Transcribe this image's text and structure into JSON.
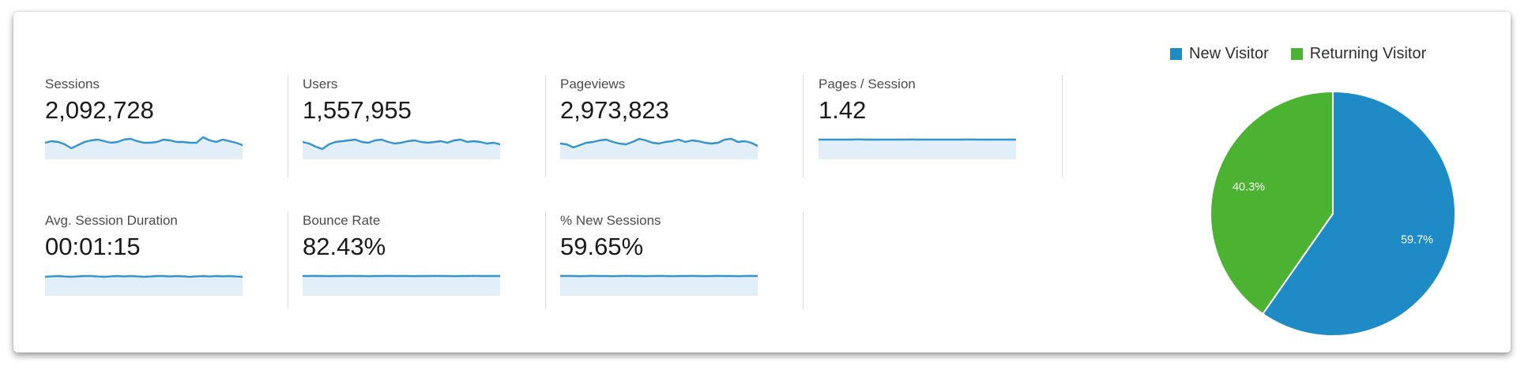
{
  "colors": {
    "spark_line": "#3494cd",
    "spark_fill": "#e2eef8",
    "divider": "#d9d9d9",
    "pie_blue": "#1e8bc6",
    "pie_green": "#4cb232"
  },
  "metrics": {
    "row1": [
      {
        "label": "Sessions",
        "value": "2,092,728",
        "spark": [
          13,
          11,
          12,
          15,
          20,
          16,
          12,
          10,
          9,
          11,
          13,
          12,
          9,
          8,
          11,
          13,
          13,
          12,
          9,
          10,
          12,
          12,
          13,
          13,
          6,
          10,
          12,
          9,
          11,
          13,
          16
        ]
      },
      {
        "label": "Users",
        "value": "1,557,955",
        "spark": [
          12,
          14,
          18,
          21,
          15,
          12,
          11,
          10,
          9,
          12,
          13,
          10,
          9,
          12,
          14,
          13,
          11,
          10,
          12,
          13,
          12,
          11,
          13,
          10,
          9,
          12,
          11,
          12,
          14,
          13,
          15
        ]
      },
      {
        "label": "Pageviews",
        "value": "2,973,823",
        "spark": [
          14,
          15,
          19,
          16,
          13,
          12,
          10,
          9,
          12,
          14,
          15,
          12,
          8,
          10,
          13,
          14,
          12,
          11,
          9,
          12,
          10,
          11,
          13,
          14,
          13,
          9,
          8,
          12,
          11,
          13,
          17
        ]
      },
      {
        "label": "Pages / Session",
        "value": "1.42",
        "spark": [
          9,
          9,
          9,
          9,
          9,
          9,
          8.7,
          9,
          9,
          9,
          9,
          9,
          9,
          9,
          8.8,
          9,
          9,
          9,
          9,
          9,
          9,
          9,
          9,
          8.8,
          9,
          9,
          9,
          9,
          9,
          9,
          9
        ]
      }
    ],
    "row2": [
      {
        "label": "Avg. Session Duration",
        "value": "00:01:15",
        "spark": [
          10,
          9.4,
          9,
          9.6,
          10,
          9.4,
          9,
          9,
          9.6,
          10,
          9.4,
          9,
          9.6,
          9,
          9.4,
          10,
          9.6,
          9,
          9,
          9.6,
          9,
          9.4,
          10,
          9.4,
          9,
          9.6,
          9,
          9.4,
          9,
          9.6,
          10
        ]
      },
      {
        "label": "Bounce Rate",
        "value": "82.43%",
        "spark": [
          9,
          9,
          8.8,
          9,
          9.2,
          9,
          9,
          8.8,
          9,
          9,
          9.2,
          9,
          9,
          8.8,
          9,
          9,
          9,
          9.2,
          9,
          9,
          8.8,
          9,
          9,
          9.2,
          9,
          9,
          8.8,
          9,
          9,
          9,
          9
        ]
      },
      {
        "label": "% New Sessions",
        "value": "59.65%",
        "spark": [
          9,
          8.8,
          9,
          9.2,
          9,
          8.8,
          9,
          9,
          9.2,
          9,
          8.8,
          9,
          9,
          9.2,
          9,
          8.8,
          9,
          9.2,
          9,
          9,
          8.8,
          9,
          9.2,
          9,
          8.8,
          9,
          9,
          9.2,
          9,
          8.8,
          9
        ]
      }
    ]
  },
  "chart_data": {
    "type": "pie",
    "labels": [
      "New Visitor",
      "Returning Visitor"
    ],
    "values": [
      59.7,
      40.3
    ],
    "value_labels": [
      "59.7%",
      "40.3%"
    ],
    "colors": [
      "#1e8bc6",
      "#4cb232"
    ],
    "slice_names": [
      "new-visitor",
      "returning-visitor"
    ],
    "legend_position": "top-right",
    "start_angle": "top",
    "direction": "clockwise"
  }
}
